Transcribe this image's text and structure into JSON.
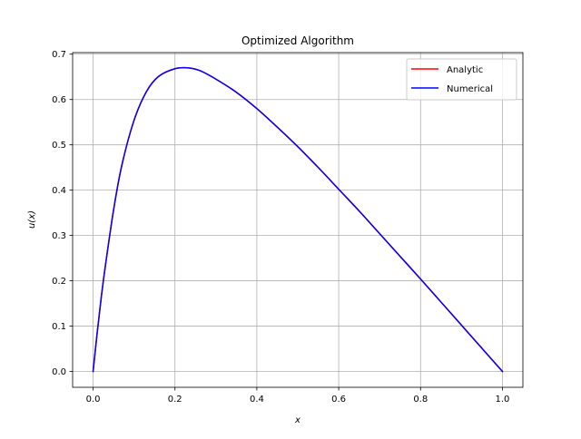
{
  "chart_data": {
    "type": "line",
    "title": "Optimized Algorithm",
    "xlabel": "x",
    "ylabel": "u(x)",
    "xlim": [
      -0.05,
      1.05
    ],
    "ylim": [
      -0.035,
      0.7035
    ],
    "x_ticks": [
      0.0,
      0.2,
      0.4,
      0.6,
      0.8,
      1.0
    ],
    "x_tick_labels": [
      "0.0",
      "0.2",
      "0.4",
      "0.6",
      "0.8",
      "1.0"
    ],
    "y_ticks": [
      0.0,
      0.1,
      0.2,
      0.3,
      0.4,
      0.5,
      0.6,
      0.7
    ],
    "y_tick_labels": [
      "0.0",
      "0.1",
      "0.2",
      "0.3",
      "0.4",
      "0.5",
      "0.6",
      "0.7"
    ],
    "grid": true,
    "legend_position": "top-right",
    "series": [
      {
        "name": "Analytic",
        "color": "#ff0000",
        "x": [
          0.0,
          0.01,
          0.02,
          0.03,
          0.05,
          0.07,
          0.1,
          0.13,
          0.16,
          0.2,
          0.23,
          0.26,
          0.3,
          0.35,
          0.4,
          0.45,
          0.5,
          0.55,
          0.6,
          0.65,
          0.7,
          0.75,
          0.8,
          0.85,
          0.9,
          0.95,
          1.0
        ],
        "values": [
          0.0,
          0.085,
          0.164,
          0.233,
          0.356,
          0.454,
          0.554,
          0.617,
          0.651,
          0.668,
          0.67,
          0.664,
          0.645,
          0.616,
          0.58,
          0.539,
          0.496,
          0.45,
          0.402,
          0.354,
          0.304,
          0.254,
          0.204,
          0.153,
          0.102,
          0.051,
          0.0
        ]
      },
      {
        "name": "Numerical",
        "color": "#0000ff",
        "x": [
          0.0,
          0.01,
          0.02,
          0.03,
          0.05,
          0.07,
          0.1,
          0.13,
          0.16,
          0.2,
          0.23,
          0.26,
          0.3,
          0.35,
          0.4,
          0.45,
          0.5,
          0.55,
          0.6,
          0.65,
          0.7,
          0.75,
          0.8,
          0.85,
          0.9,
          0.95,
          1.0
        ],
        "values": [
          0.0,
          0.085,
          0.164,
          0.233,
          0.356,
          0.454,
          0.554,
          0.617,
          0.651,
          0.668,
          0.67,
          0.664,
          0.645,
          0.616,
          0.58,
          0.539,
          0.496,
          0.45,
          0.402,
          0.354,
          0.304,
          0.254,
          0.204,
          0.153,
          0.102,
          0.051,
          0.0
        ]
      }
    ]
  }
}
